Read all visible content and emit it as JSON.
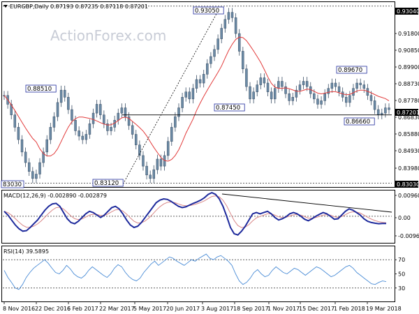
{
  "header": {
    "symbol_label": "EURGBP,Daily",
    "ohlc_label": "0.87193 0.87235 0.87118 0.87201"
  },
  "watermark": "ActionForex.com",
  "x_axis": {
    "labels": [
      "8 Nov 2016",
      "22 Dec 2016",
      "6 Feb 2017",
      "22 Mar 2017",
      "5 May 2017",
      "20 Jun 2017",
      "3 Aug 2017",
      "18 Sep 2017",
      "1 Nov 2017",
      "15 Dec 2017",
      "1 Feb 2018",
      "19 Mar 2018"
    ]
  },
  "chart_data": [
    {
      "name": "price",
      "type": "candlestick",
      "ylim": [
        0.8286,
        0.9324
      ],
      "y_ticks": [
        "0.91800",
        "0.90850",
        "0.89900",
        "0.88730",
        "0.87780",
        "0.86830",
        "0.85880",
        "0.84930",
        "0.83980"
      ],
      "price_tag_top": "0.93040",
      "price_tag_last": "0.87201",
      "price_tag_bottom": "0.83030",
      "price_tag_small": "",
      "annotations": [
        {
          "label": "0.93050",
          "value": 0.9305
        },
        {
          "label": "0.88510",
          "value": 0.8851
        },
        {
          "label": "0.87450",
          "value": 0.8745
        },
        {
          "label": "0.89670",
          "value": 0.8967
        },
        {
          "label": "0.86660",
          "value": 0.8666
        },
        {
          "label": "0.83120",
          "value": 0.8312
        },
        {
          "label": "83030",
          "value": 0.8303
        }
      ],
      "closes": [
        0.88,
        0.875,
        0.869,
        0.862,
        0.855,
        0.848,
        0.842,
        0.837,
        0.833,
        0.8355,
        0.842,
        0.848,
        0.855,
        0.862,
        0.868,
        0.876,
        0.883,
        0.879,
        0.872,
        0.866,
        0.86,
        0.857,
        0.855,
        0.858,
        0.864,
        0.87,
        0.875,
        0.869,
        0.864,
        0.86,
        0.862,
        0.866,
        0.87,
        0.873,
        0.868,
        0.863,
        0.858,
        0.852,
        0.846,
        0.84,
        0.835,
        0.833,
        0.838,
        0.844,
        0.84,
        0.846,
        0.854,
        0.862,
        0.868,
        0.873,
        0.879,
        0.882,
        0.878,
        0.884,
        0.889,
        0.887,
        0.892,
        0.898,
        0.902,
        0.906,
        0.912,
        0.918,
        0.923,
        0.927,
        0.924,
        0.915,
        0.905,
        0.895,
        0.885,
        0.878,
        0.882,
        0.886,
        0.89,
        0.887,
        0.882,
        0.878,
        0.884,
        0.888,
        0.885,
        0.881,
        0.877,
        0.879,
        0.883,
        0.886,
        0.888,
        0.885,
        0.881,
        0.878,
        0.875,
        0.877,
        0.881,
        0.884,
        0.887,
        0.885,
        0.882,
        0.879,
        0.876,
        0.88,
        0.884,
        0.887,
        0.886,
        0.884,
        0.88,
        0.877,
        0.872,
        0.869,
        0.87,
        0.873,
        0.872
      ],
      "sma_label": "",
      "support_line": {
        "label": "",
        "value": 0.8745
      },
      "bottom_line": {
        "label": "",
        "value": 0.8303
      }
    },
    {
      "name": "macd",
      "type": "line",
      "title": "MACD(12,26,9) -0.002890 -0.002879",
      "ylim": [
        -0.0104,
        0.0101
      ],
      "y_ticks": [
        "0.009608",
        "0.00",
        "-0.00961"
      ],
      "values": [
        0.002,
        0.0005,
        -0.0015,
        -0.0035,
        -0.005,
        -0.006,
        -0.0058,
        -0.0045,
        -0.003,
        -0.0015,
        0.0005,
        0.0025,
        0.004,
        0.005,
        0.0052,
        0.004,
        0.0015,
        -0.001,
        -0.0025,
        -0.003,
        -0.002,
        -0.0005,
        0.001,
        0.002,
        0.0015,
        0.0005,
        -0.0005,
        0.0005,
        0.002,
        0.0035,
        0.004,
        0.003,
        0.001,
        -0.0015,
        -0.0035,
        -0.0045,
        -0.004,
        -0.0025,
        -0.0005,
        0.0015,
        0.0035,
        0.0055,
        0.0065,
        0.007,
        0.0068,
        0.006,
        0.005,
        0.004,
        0.0035,
        0.0038,
        0.0045,
        0.0052,
        0.0058,
        0.0065,
        0.0075,
        0.0088,
        0.0095,
        0.0088,
        0.007,
        0.004,
        0.0,
        -0.0045,
        -0.007,
        -0.0075,
        -0.006,
        -0.004,
        -0.0015,
        0.001,
        0.0015,
        0.001,
        0.0015,
        0.002,
        0.001,
        -0.0005,
        -0.0015,
        -0.001,
        -0.0002,
        0.001,
        0.0015,
        0.001,
        0.0,
        -0.0012,
        -0.0018,
        -0.001,
        0.0,
        0.0008,
        0.0015,
        0.001,
        0.0,
        -0.0012,
        -0.001,
        0.0005,
        0.002,
        0.003,
        0.0025,
        0.0015,
        0.0005,
        -0.001,
        -0.002,
        -0.0025,
        -0.0028,
        -0.003,
        -0.0029,
        -0.0029
      ],
      "trendline_label": ""
    },
    {
      "name": "rsi",
      "type": "line",
      "title": "RSI(14) 39.5895",
      "ylim": [
        12,
        88
      ],
      "y_ticks": [
        "70",
        "50",
        "30"
      ],
      "levels": [
        70,
        30
      ],
      "values": [
        55,
        45,
        38,
        30,
        28,
        35,
        45,
        52,
        58,
        62,
        66,
        70,
        65,
        58,
        52,
        50,
        55,
        62,
        57,
        50,
        46,
        44,
        48,
        55,
        60,
        56,
        52,
        48,
        45,
        50,
        58,
        63,
        60,
        52,
        46,
        42,
        40,
        44,
        52,
        58,
        64,
        68,
        62,
        66,
        70,
        74,
        72,
        68,
        65,
        62,
        66,
        70,
        68,
        72,
        75,
        78,
        72,
        70,
        74,
        76,
        72,
        68,
        62,
        50,
        40,
        35,
        38,
        44,
        52,
        56,
        50,
        46,
        48,
        55,
        60,
        56,
        52,
        50,
        54,
        58,
        56,
        52,
        48,
        52,
        56,
        60,
        58,
        54,
        50,
        46,
        48,
        52,
        56,
        60,
        62,
        58,
        52,
        48,
        44,
        40,
        36,
        35,
        38,
        40,
        39
      ]
    }
  ],
  "colors": {
    "candle_fill": "#6b8aa5",
    "candle_stroke": "#3b4f66",
    "sma": "#e23b3b",
    "macd_line": "#1e2a9c",
    "macd_signal": "#d98888",
    "rsi": "#4a8cd6",
    "trend": "#000000",
    "box_border": "#1e2a9c"
  }
}
